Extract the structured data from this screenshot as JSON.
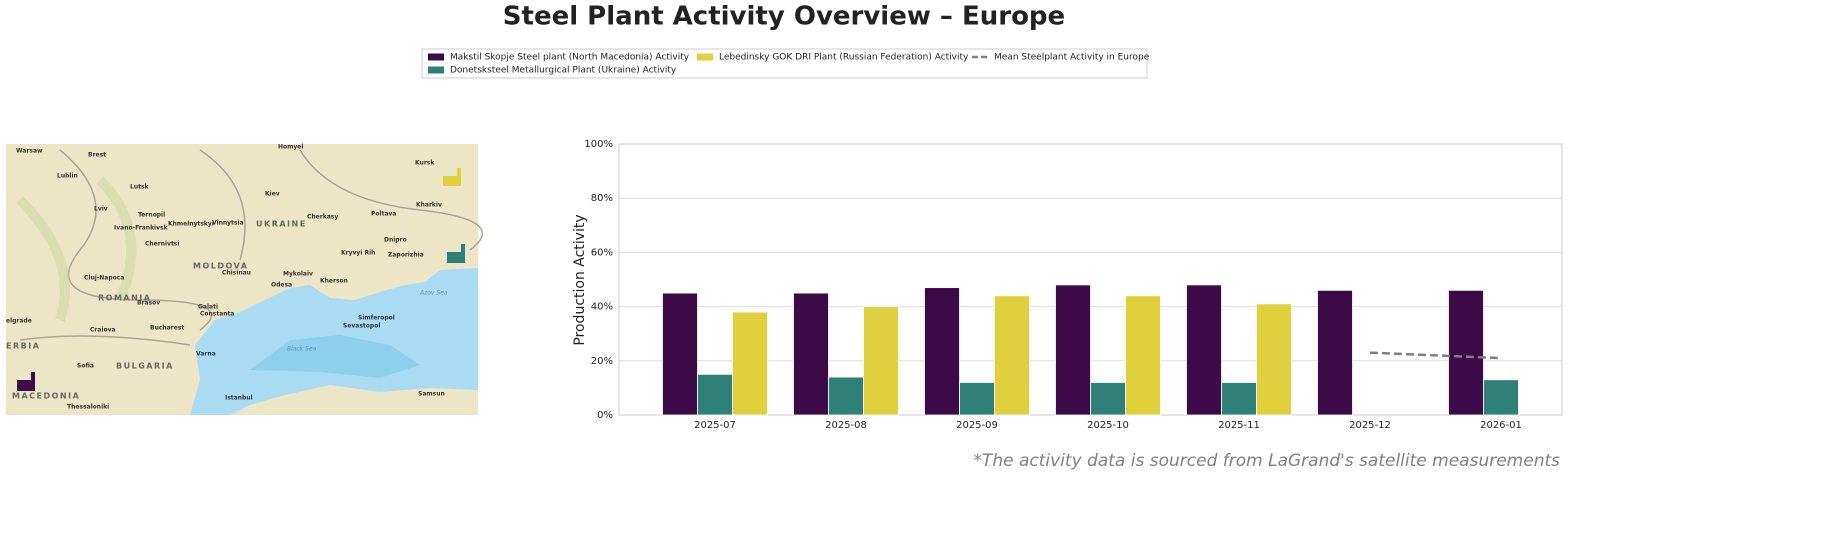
{
  "chart_data": {
    "type": "bar",
    "title": "Steel Plant Activity Overview – Europe",
    "ylabel": "Production Activity",
    "categories": [
      "2025-07",
      "2025-08",
      "2025-09",
      "2025-10",
      "2025-11",
      "2025-12",
      "2026-01"
    ],
    "series": [
      {
        "name": "Makstil Skopje Steel plant (North Macedonia) Activity",
        "color": "#3b0a47",
        "values": [
          45,
          45,
          47,
          48,
          48,
          46,
          46
        ]
      },
      {
        "name": "Donetsksteel Metallurgical Plant (Ukraine) Activity",
        "color": "#2e8078",
        "values": [
          15,
          14,
          12,
          12,
          12,
          null,
          13
        ]
      },
      {
        "name": "Lebedinsky GOK DRI Plant (Russian Federation) Activity",
        "color": "#e0d03d",
        "values": [
          38,
          40,
          44,
          44,
          41,
          null,
          null
        ]
      },
      {
        "name": "Mean Steelplant Activity in Europe",
        "type": "line",
        "color": "#7f7f7f",
        "dashed": true,
        "values": [
          null,
          null,
          null,
          null,
          null,
          23,
          21
        ]
      }
    ],
    "ylim": [
      0,
      100
    ],
    "yticks": [
      {
        "value": 0,
        "label": "0%"
      },
      {
        "value": 20,
        "label": "20%"
      },
      {
        "value": 40,
        "label": "40%"
      },
      {
        "value": 60,
        "label": "60%"
      },
      {
        "value": 80,
        "label": "80%"
      },
      {
        "value": 100,
        "label": "100%"
      }
    ],
    "grid": true,
    "legend": "top",
    "footnote": "*The activity data is sourced from LaGrand's satellite measurements"
  },
  "map": {
    "labels": [
      "Warsaw",
      "Brest",
      "Homyel",
      "Kursk",
      "Lublin",
      "Lutsk",
      "Kiev",
      "Kharkiv",
      "Lviv",
      "Ternopil",
      "Khmelnytskyi",
      "Vinnytsia",
      "UKRAINE",
      "Cherkasy",
      "Poltava",
      "Dnipro",
      "Zaporizhia",
      "Kryvyi Rih",
      "Ivano-Frankivsk",
      "Chernivtsi",
      "MOLDOVA",
      "Chisinau",
      "Mykolaiv",
      "Odesa",
      "Kherson",
      "Cluj-Napoca",
      "ROMANIA",
      "Brasov",
      "Galati",
      "Constanta",
      "Bucharest",
      "Craiova",
      "Simferopol",
      "Sevastopol",
      "Black Sea",
      "Azov Sea",
      "Varna",
      "Sofia",
      "BULGARIA",
      "elgrade",
      "ERBIA",
      "Istanbul",
      "Thessaloniki",
      "Samsun",
      "MACEDONIA"
    ]
  }
}
